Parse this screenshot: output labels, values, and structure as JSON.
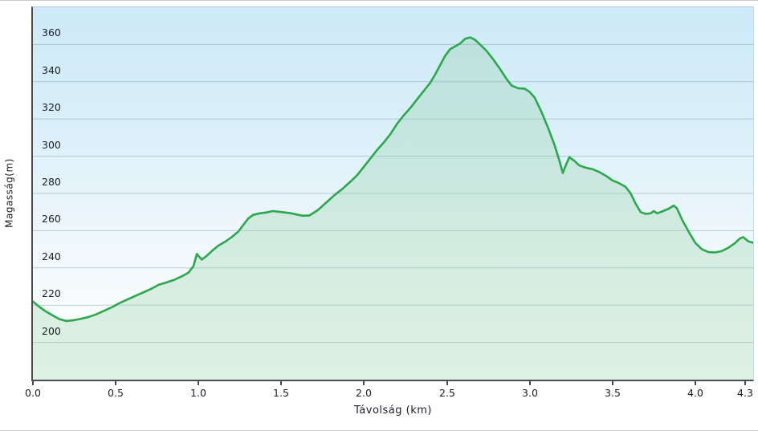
{
  "page": {
    "background": "#ffffff",
    "frame_border_color": "#cccccc"
  },
  "chart_data": {
    "type": "area",
    "title": "",
    "xlabel": "Távolság  (km)",
    "ylabel": "Magasság(m)",
    "xlim": [
      0,
      4.35
    ],
    "ylim": [
      180,
      380
    ],
    "grid": true,
    "legend_position": "none",
    "x_ticks": [
      0.0,
      0.5,
      1.0,
      1.5,
      2.0,
      2.5,
      3.0,
      3.5,
      4.0,
      4.3
    ],
    "x_tick_labels": [
      "0.0",
      "0.5",
      "1.0",
      "1.5",
      "2.0",
      "2.5",
      "3.0",
      "3.5",
      "4.0",
      "4.3"
    ],
    "y_ticks": [
      200,
      220,
      240,
      260,
      280,
      300,
      320,
      340,
      360
    ],
    "y_tick_labels": [
      "200",
      "220",
      "240",
      "260",
      "280",
      "300",
      "320",
      "340",
      "360"
    ],
    "colors": {
      "line": "#2aa84b",
      "fill": "rgba(136,206,155,0.28)",
      "grid": "rgba(130,162,177,0.5)",
      "axis": "#4c4c4c",
      "text": "#1c1c26",
      "sky_top": "#cde9f7",
      "sky_bottom": "#ffffff"
    },
    "series": [
      {
        "name": "elevation_profile",
        "points": [
          [
            0.0,
            222
          ],
          [
            0.04,
            219
          ],
          [
            0.08,
            216.5
          ],
          [
            0.12,
            214.5
          ],
          [
            0.16,
            212.5
          ],
          [
            0.2,
            211.5
          ],
          [
            0.24,
            211.8
          ],
          [
            0.28,
            212.5
          ],
          [
            0.33,
            213.5
          ],
          [
            0.38,
            215
          ],
          [
            0.43,
            217
          ],
          [
            0.48,
            219
          ],
          [
            0.52,
            221
          ],
          [
            0.57,
            223
          ],
          [
            0.62,
            225
          ],
          [
            0.67,
            227
          ],
          [
            0.72,
            229
          ],
          [
            0.76,
            231
          ],
          [
            0.8,
            232
          ],
          [
            0.85,
            233.5
          ],
          [
            0.9,
            235.5
          ],
          [
            0.94,
            237.5
          ],
          [
            0.97,
            241
          ],
          [
            0.99,
            247.5
          ],
          [
            1.02,
            244.5
          ],
          [
            1.05,
            246.5
          ],
          [
            1.08,
            249
          ],
          [
            1.12,
            252
          ],
          [
            1.16,
            254
          ],
          [
            1.2,
            256.5
          ],
          [
            1.24,
            259.5
          ],
          [
            1.27,
            263
          ],
          [
            1.3,
            266.5
          ],
          [
            1.33,
            268.5
          ],
          [
            1.37,
            269.3
          ],
          [
            1.41,
            269.8
          ],
          [
            1.45,
            270.5
          ],
          [
            1.5,
            270
          ],
          [
            1.55,
            269.5
          ],
          [
            1.59,
            268.7
          ],
          [
            1.63,
            268
          ],
          [
            1.67,
            268.2
          ],
          [
            1.72,
            271
          ],
          [
            1.77,
            275
          ],
          [
            1.82,
            279
          ],
          [
            1.87,
            282.5
          ],
          [
            1.92,
            286.5
          ],
          [
            1.96,
            290
          ],
          [
            2.0,
            294.5
          ],
          [
            2.04,
            299
          ],
          [
            2.08,
            303.5
          ],
          [
            2.12,
            307.5
          ],
          [
            2.16,
            312
          ],
          [
            2.2,
            317.5
          ],
          [
            2.24,
            322
          ],
          [
            2.28,
            326
          ],
          [
            2.32,
            330.5
          ],
          [
            2.36,
            335
          ],
          [
            2.4,
            339.5
          ],
          [
            2.43,
            344
          ],
          [
            2.46,
            349
          ],
          [
            2.49,
            354
          ],
          [
            2.52,
            357.5
          ],
          [
            2.55,
            359
          ],
          [
            2.58,
            360.5
          ],
          [
            2.61,
            363
          ],
          [
            2.64,
            363.8
          ],
          [
            2.67,
            362.5
          ],
          [
            2.7,
            360
          ],
          [
            2.74,
            356.5
          ],
          [
            2.78,
            352
          ],
          [
            2.82,
            347
          ],
          [
            2.86,
            341.5
          ],
          [
            2.89,
            338
          ],
          [
            2.93,
            336.5
          ],
          [
            2.97,
            336.3
          ],
          [
            3.0,
            334.5
          ],
          [
            3.03,
            331.5
          ],
          [
            3.07,
            324
          ],
          [
            3.11,
            315.5
          ],
          [
            3.15,
            306
          ],
          [
            3.18,
            297.5
          ],
          [
            3.2,
            291
          ],
          [
            3.22,
            295.5
          ],
          [
            3.24,
            299.5
          ],
          [
            3.27,
            297.5
          ],
          [
            3.3,
            295
          ],
          [
            3.34,
            293.8
          ],
          [
            3.38,
            293
          ],
          [
            3.42,
            291.5
          ],
          [
            3.46,
            289.5
          ],
          [
            3.5,
            287
          ],
          [
            3.54,
            285.5
          ],
          [
            3.58,
            283.5
          ],
          [
            3.61,
            280
          ],
          [
            3.64,
            274.5
          ],
          [
            3.67,
            270
          ],
          [
            3.7,
            269
          ],
          [
            3.73,
            269.3
          ],
          [
            3.75,
            270.5
          ],
          [
            3.77,
            269.3
          ],
          [
            3.8,
            270.3
          ],
          [
            3.84,
            271.8
          ],
          [
            3.87,
            273.5
          ],
          [
            3.89,
            272
          ],
          [
            3.92,
            266
          ],
          [
            3.96,
            259.5
          ],
          [
            4.0,
            253.5
          ],
          [
            4.04,
            250
          ],
          [
            4.08,
            248.5
          ],
          [
            4.12,
            248.3
          ],
          [
            4.16,
            249
          ],
          [
            4.2,
            250.8
          ],
          [
            4.24,
            253.3
          ],
          [
            4.27,
            255.8
          ],
          [
            4.29,
            256.5
          ],
          [
            4.32,
            254.3
          ],
          [
            4.35,
            253.5
          ]
        ]
      }
    ]
  }
}
